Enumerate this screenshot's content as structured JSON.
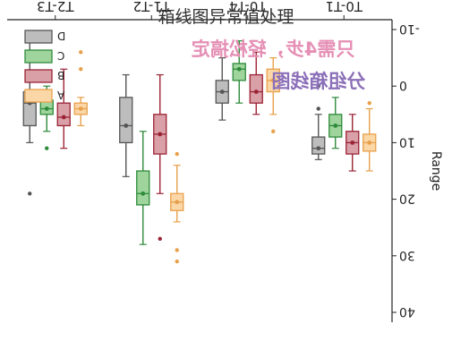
{
  "page": {
    "title": "箱线图异常值处理"
  },
  "banner": {
    "line1": "只需4步，轻松搞定",
    "line2": "分组箱线图",
    "line1_color": "#e58fb5",
    "line2_color": "#8b6fb8"
  },
  "chart_data": {
    "type": "box",
    "rendered_rotated_deg": 180,
    "ylabel": "Range",
    "ylim": [
      -10,
      40
    ],
    "yticks": [
      -10,
      0,
      10,
      20,
      30,
      40
    ],
    "categories": [
      "T0-T1",
      "T0-T4",
      "T1-T2",
      "T2-T3"
    ],
    "series": [
      {
        "name": "A",
        "color": "#e8a04a",
        "fill": "#fbd7a8",
        "boxes": [
          {
            "whisker_low": 4,
            "q1": 8.5,
            "median": 10,
            "q3": 11.5,
            "whisker_high": 15,
            "mean": 10,
            "outliers": [
              3
            ]
          },
          {
            "whisker_low": -5,
            "q1": -3,
            "median": -1,
            "q3": 1,
            "whisker_high": 5,
            "mean": -1,
            "outliers": [
              8
            ]
          },
          {
            "whisker_low": 14,
            "q1": 19,
            "median": 20.5,
            "q3": 22,
            "whisker_high": 24,
            "mean": 20.5,
            "outliers": [
              12,
              29,
              31
            ]
          },
          {
            "whisker_low": 2,
            "q1": 3,
            "median": 4,
            "q3": 5,
            "whisker_high": 7,
            "mean": 4,
            "outliers": [
              -3,
              -6
            ]
          }
        ]
      },
      {
        "name": "B",
        "color": "#9b2335",
        "fill": "#d9a0a8",
        "boxes": [
          {
            "whisker_low": 5,
            "q1": 8,
            "median": 10,
            "q3": 12,
            "whisker_high": 15,
            "mean": 10,
            "outliers": []
          },
          {
            "whisker_low": -6,
            "q1": -2,
            "median": 1,
            "q3": 3,
            "whisker_high": 5,
            "mean": 1,
            "outliers": []
          },
          {
            "whisker_low": -2,
            "q1": 5,
            "median": 8.5,
            "q3": 12,
            "whisker_high": 19,
            "mean": 8.5,
            "outliers": [
              27
            ]
          },
          {
            "whisker_low": -3,
            "q1": 3,
            "median": 5.5,
            "q3": 7,
            "whisker_high": 11,
            "mean": 5.5,
            "outliers": []
          }
        ]
      },
      {
        "name": "C",
        "color": "#2e8b3a",
        "fill": "#9fd49d",
        "boxes": [
          {
            "whisker_low": 2,
            "q1": 5,
            "median": 7,
            "q3": 9,
            "whisker_high": 11,
            "mean": 7,
            "outliers": []
          },
          {
            "whisker_low": -8,
            "q1": -4,
            "median": -3,
            "q3": -1,
            "whisker_high": 3,
            "mean": -3,
            "outliers": []
          },
          {
            "whisker_low": 8,
            "q1": 15,
            "median": 19,
            "q3": 21,
            "whisker_high": 28,
            "mean": 19,
            "outliers": []
          },
          {
            "whisker_low": 0,
            "q1": 2.5,
            "median": 4,
            "q3": 5,
            "whisker_high": 8,
            "mean": 4,
            "outliers": [
              11
            ]
          }
        ]
      },
      {
        "name": "D",
        "color": "#555555",
        "fill": "#bdbdbd",
        "boxes": [
          {
            "whisker_low": 5,
            "q1": 9,
            "median": 11,
            "q3": 12,
            "whisker_high": 13,
            "mean": 11,
            "outliers": [
              4,
              0
            ]
          },
          {
            "whisker_low": -5,
            "q1": -1,
            "median": 1,
            "q3": 3,
            "whisker_high": 6,
            "mean": 1,
            "outliers": []
          },
          {
            "whisker_low": -2,
            "q1": 2,
            "median": 7,
            "q3": 10,
            "whisker_high": 16,
            "mean": 7,
            "outliers": []
          },
          {
            "whisker_low": -8,
            "q1": 1,
            "median": 3,
            "q3": 7,
            "whisker_high": 10,
            "mean": 3,
            "outliers": [
              19
            ]
          }
        ]
      }
    ],
    "legend": {
      "position": "bottom-right (rendered top-left after rotation)"
    },
    "grid": false
  }
}
